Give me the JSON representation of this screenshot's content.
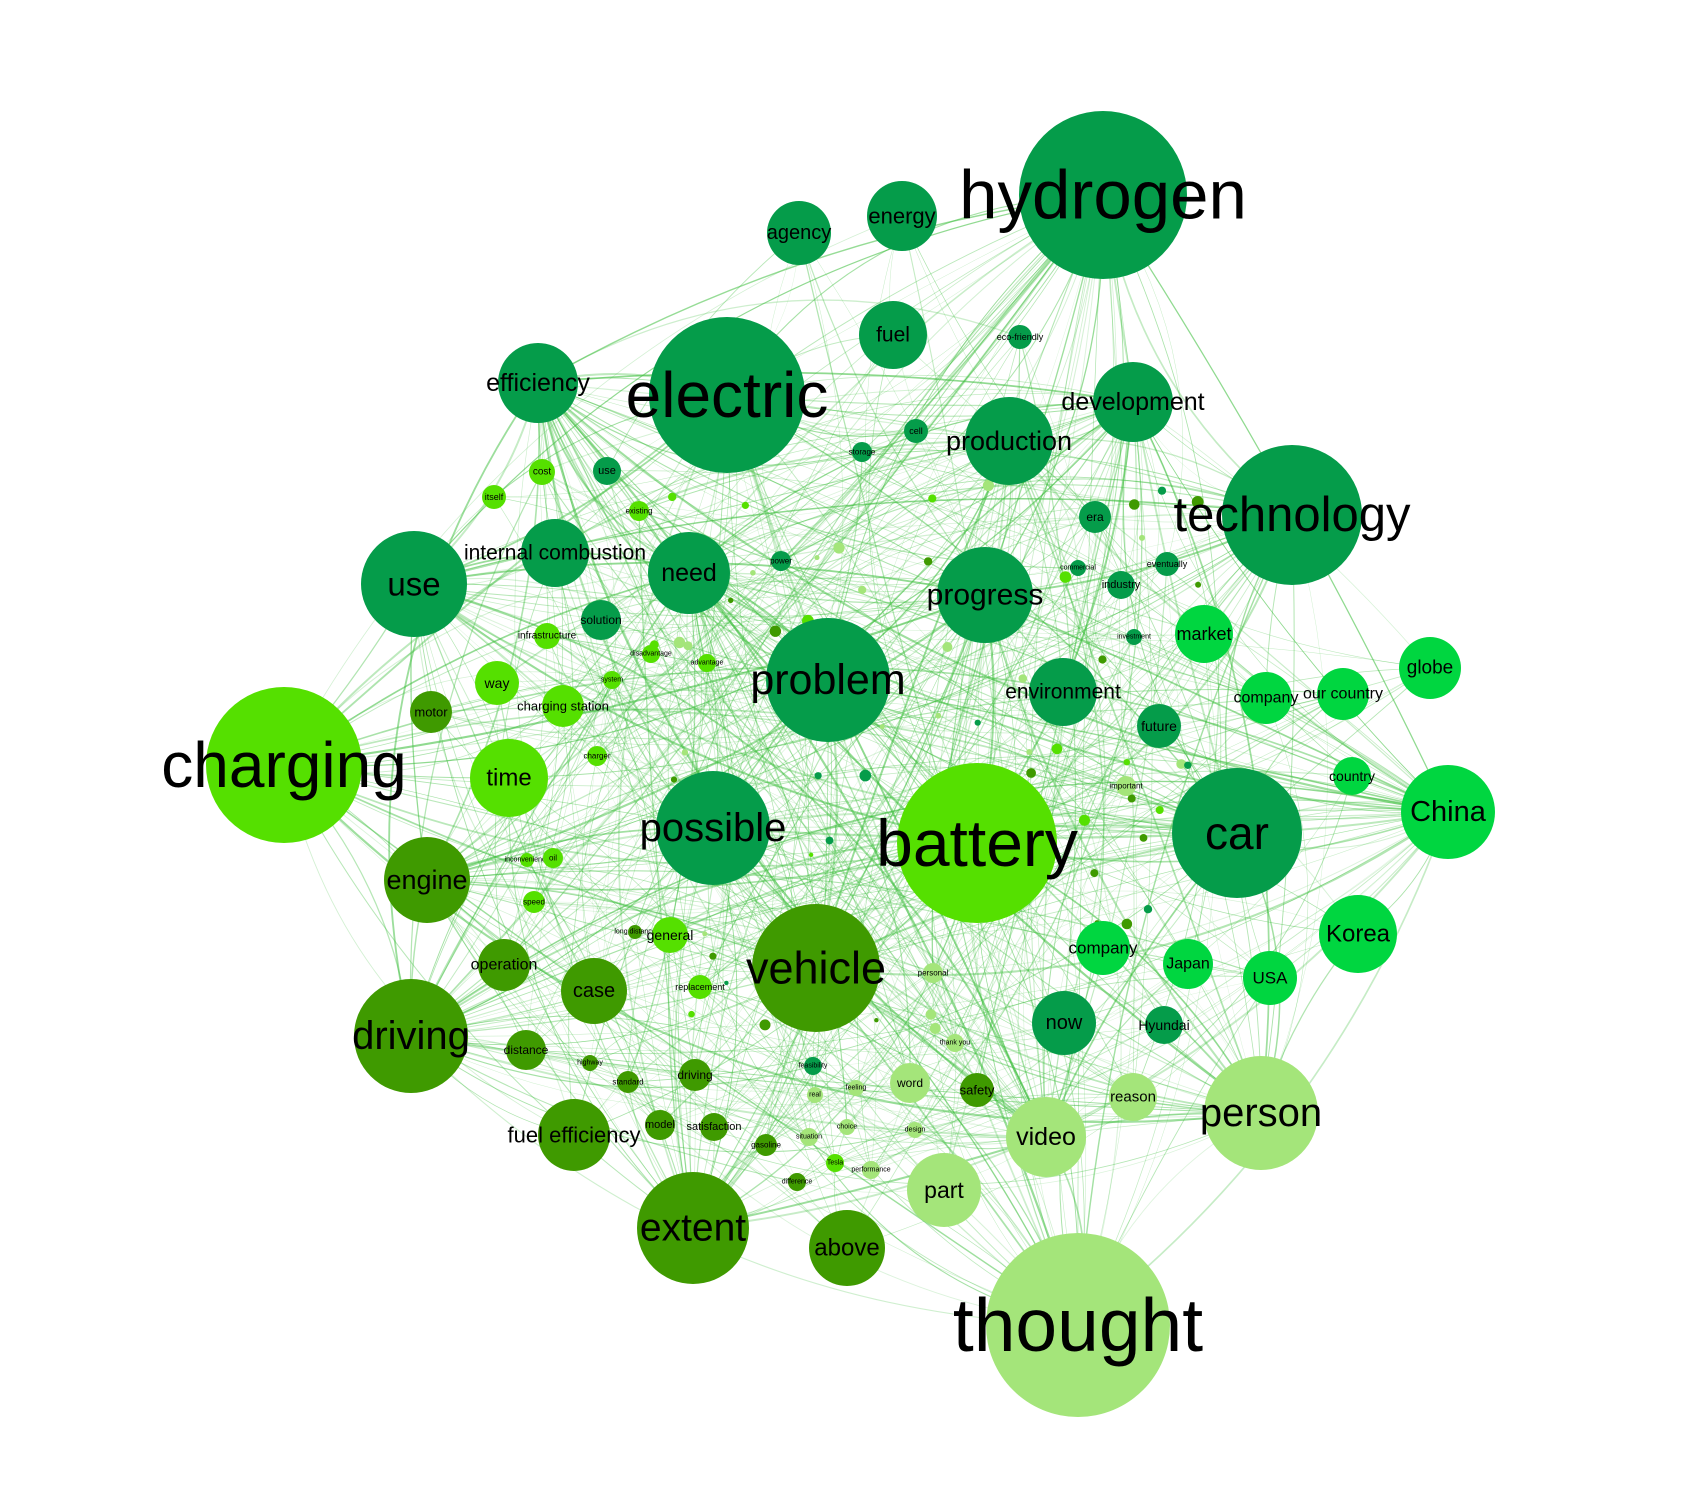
{
  "colors": {
    "dark_green": "#059c4a",
    "bright_green": "#55e000",
    "olive_green": "#3f9a00",
    "light_green": "#a4e57a",
    "lime_green": "#00d640",
    "edge_green": "#3fbf3f"
  },
  "nodes": [
    {
      "id": "hydrogen",
      "label": "hydrogen",
      "group": "dark_green",
      "weight": 84
    },
    {
      "id": "electric",
      "label": "electric",
      "group": "dark_green",
      "weight": 78
    },
    {
      "id": "technology",
      "label": "technology",
      "group": "dark_green",
      "weight": 70
    },
    {
      "id": "charging",
      "label": "charging",
      "group": "bright_green",
      "weight": 78
    },
    {
      "id": "battery",
      "label": "battery",
      "group": "bright_green",
      "weight": 80
    },
    {
      "id": "thought",
      "label": "thought",
      "group": "light_green",
      "weight": 92
    },
    {
      "id": "car",
      "label": "car",
      "group": "dark_green",
      "weight": 65
    },
    {
      "id": "problem",
      "label": "problem",
      "group": "dark_green",
      "weight": 62
    },
    {
      "id": "possible",
      "label": "possible",
      "group": "dark_green",
      "weight": 57
    },
    {
      "id": "vehicle",
      "label": "vehicle",
      "group": "olive_green",
      "weight": 64
    },
    {
      "id": "use_big",
      "label": "use",
      "group": "dark_green",
      "weight": 53
    },
    {
      "id": "progress",
      "label": "progress",
      "group": "dark_green",
      "weight": 48
    },
    {
      "id": "production",
      "label": "production",
      "group": "dark_green",
      "weight": 44
    },
    {
      "id": "development",
      "label": "development",
      "group": "dark_green",
      "weight": 40
    },
    {
      "id": "driving_big",
      "label": "driving",
      "group": "olive_green",
      "weight": 57
    },
    {
      "id": "extent",
      "label": "extent",
      "group": "olive_green",
      "weight": 56
    },
    {
      "id": "person",
      "label": "person",
      "group": "light_green",
      "weight": 57
    },
    {
      "id": "efficiency",
      "label": "efficiency",
      "group": "dark_green",
      "weight": 40
    },
    {
      "id": "need",
      "label": "need",
      "group": "dark_green",
      "weight": 41
    },
    {
      "id": "fuel",
      "label": "fuel",
      "group": "dark_green",
      "weight": 34
    },
    {
      "id": "energy",
      "label": "energy",
      "group": "dark_green",
      "weight": 35
    },
    {
      "id": "agency",
      "label": "agency",
      "group": "dark_green",
      "weight": 32
    },
    {
      "id": "environment",
      "label": "environment",
      "group": "dark_green",
      "weight": 34
    },
    {
      "id": "internal_combustion",
      "label": "internal combustion",
      "group": "dark_green",
      "weight": 34
    },
    {
      "id": "time",
      "label": "time",
      "group": "bright_green",
      "weight": 39
    },
    {
      "id": "engine",
      "label": "engine",
      "group": "olive_green",
      "weight": 43
    },
    {
      "id": "fuel_efficiency",
      "label": "fuel efficiency",
      "group": "olive_green",
      "weight": 36
    },
    {
      "id": "above",
      "label": "above",
      "group": "olive_green",
      "weight": 38
    },
    {
      "id": "china",
      "label": "China",
      "group": "lime_green",
      "weight": 47
    },
    {
      "id": "korea",
      "label": "Korea",
      "group": "lime_green",
      "weight": 39
    },
    {
      "id": "globe",
      "label": "globe",
      "group": "lime_green",
      "weight": 31
    },
    {
      "id": "market",
      "label": "market",
      "group": "lime_green",
      "weight": 29
    },
    {
      "id": "company_r",
      "label": "company",
      "group": "lime_green",
      "weight": 26
    },
    {
      "id": "our_country",
      "label": "our country",
      "group": "lime_green",
      "weight": 26
    },
    {
      "id": "country",
      "label": "country",
      "group": "lime_green",
      "weight": 19
    },
    {
      "id": "company_m",
      "label": "company",
      "group": "lime_green",
      "weight": 27
    },
    {
      "id": "japan",
      "label": "Japan",
      "group": "lime_green",
      "weight": 25
    },
    {
      "id": "usa",
      "label": "USA",
      "group": "lime_green",
      "weight": 27
    },
    {
      "id": "hyundai",
      "label": "Hyundai",
      "group": "dark_green",
      "weight": 19
    },
    {
      "id": "now",
      "label": "now",
      "group": "dark_green",
      "weight": 32
    },
    {
      "id": "future",
      "label": "future",
      "group": "dark_green",
      "weight": 22
    },
    {
      "id": "video",
      "label": "video",
      "group": "light_green",
      "weight": 40
    },
    {
      "id": "part",
      "label": "part",
      "group": "light_green",
      "weight": 37
    },
    {
      "id": "reason",
      "label": "reason",
      "group": "light_green",
      "weight": 24
    },
    {
      "id": "word",
      "label": "word",
      "group": "light_green",
      "weight": 20
    },
    {
      "id": "safety",
      "label": "safety",
      "group": "olive_green",
      "weight": 17
    },
    {
      "id": "case",
      "label": "case",
      "group": "olive_green",
      "weight": 33
    },
    {
      "id": "operation",
      "label": "operation",
      "group": "olive_green",
      "weight": 26
    },
    {
      "id": "distance",
      "label": "distance",
      "group": "olive_green",
      "weight": 20
    },
    {
      "id": "motor",
      "label": "motor",
      "group": "olive_green",
      "weight": 21
    },
    {
      "id": "way",
      "label": "way",
      "group": "bright_green",
      "weight": 22
    },
    {
      "id": "charging_station",
      "label": "charging station",
      "group": "bright_green",
      "weight": 21
    },
    {
      "id": "solution",
      "label": "solution",
      "group": "dark_green",
      "weight": 20
    },
    {
      "id": "general",
      "label": "general",
      "group": "bright_green",
      "weight": 18
    },
    {
      "id": "driving_small",
      "label": "driving",
      "group": "olive_green",
      "weight": 16
    },
    {
      "id": "model",
      "label": "model",
      "group": "olive_green",
      "weight": 15
    },
    {
      "id": "satisfaction",
      "label": "satisfaction",
      "group": "olive_green",
      "weight": 14
    },
    {
      "id": "eco_friendly",
      "label": "eco-friendly",
      "group": "dark_green",
      "weight": 12
    },
    {
      "id": "cell",
      "label": "cell",
      "group": "dark_green",
      "weight": 12
    },
    {
      "id": "storage",
      "label": "storage",
      "group": "dark_green",
      "weight": 10
    },
    {
      "id": "era",
      "label": "era",
      "group": "dark_green",
      "weight": 16
    },
    {
      "id": "industry",
      "label": "industry",
      "group": "dark_green",
      "weight": 14
    },
    {
      "id": "eventually",
      "label": "eventually",
      "group": "dark_green",
      "weight": 12
    },
    {
      "id": "commercial",
      "label": "commercial",
      "group": "dark_green",
      "weight": 8
    },
    {
      "id": "investment",
      "label": "investment",
      "group": "dark_green",
      "weight": 8
    },
    {
      "id": "important",
      "label": "important",
      "group": "light_green",
      "weight": 10
    },
    {
      "id": "cost",
      "label": "cost",
      "group": "bright_green",
      "weight": 13
    },
    {
      "id": "use_small",
      "label": "use",
      "group": "dark_green",
      "weight": 14
    },
    {
      "id": "itself",
      "label": "itself",
      "group": "bright_green",
      "weight": 12
    },
    {
      "id": "existing",
      "label": "existing",
      "group": "bright_green",
      "weight": 10
    },
    {
      "id": "power",
      "label": "power",
      "group": "dark_green",
      "weight": 10
    },
    {
      "id": "infrastructure",
      "label": "infrastructure",
      "group": "bright_green",
      "weight": 13
    },
    {
      "id": "disadvantage",
      "label": "disadvantage",
      "group": "bright_green",
      "weight": 9
    },
    {
      "id": "advantage",
      "label": "advantage",
      "group": "bright_green",
      "weight": 9
    },
    {
      "id": "system",
      "label": "system",
      "group": "bright_green",
      "weight": 9
    },
    {
      "id": "charger",
      "label": "charger",
      "group": "bright_green",
      "weight": 10
    },
    {
      "id": "oil",
      "label": "oil",
      "group": "bright_green",
      "weight": 10
    },
    {
      "id": "speed",
      "label": "speed",
      "group": "bright_green",
      "weight": 11
    },
    {
      "id": "inconvenience",
      "label": "inconvenience",
      "group": "bright_green",
      "weight": 7
    },
    {
      "id": "long_distance",
      "label": "long distance",
      "group": "olive_green",
      "weight": 7
    },
    {
      "id": "replacement",
      "label": "replacement",
      "group": "bright_green",
      "weight": 12
    },
    {
      "id": "standard",
      "label": "standard",
      "group": "olive_green",
      "weight": 11
    },
    {
      "id": "highway",
      "label": "highway",
      "group": "olive_green",
      "weight": 8
    },
    {
      "id": "personal",
      "label": "personal",
      "group": "light_green",
      "weight": 10
    },
    {
      "id": "thank_you",
      "label": "thank you",
      "group": "light_green",
      "weight": 9
    },
    {
      "id": "feeling",
      "label": "feeling",
      "group": "light_green",
      "weight": 8
    },
    {
      "id": "real",
      "label": "real",
      "group": "light_green",
      "weight": 8
    },
    {
      "id": "choice",
      "label": "choice",
      "group": "light_green",
      "weight": 8
    },
    {
      "id": "situation",
      "label": "situation",
      "group": "light_green",
      "weight": 9
    },
    {
      "id": "gasoline",
      "label": "gasoline",
      "group": "olive_green",
      "weight": 11
    },
    {
      "id": "difference",
      "label": "difference",
      "group": "olive_green",
      "weight": 9
    },
    {
      "id": "tesla",
      "label": "Tesla",
      "group": "bright_green",
      "weight": 9
    },
    {
      "id": "performance",
      "label": "performance",
      "group": "light_green",
      "weight": 9
    },
    {
      "id": "design",
      "label": "design",
      "group": "light_green",
      "weight": 8
    },
    {
      "id": "feasibility",
      "label": "feasibility",
      "group": "dark_green",
      "weight": 9
    }
  ]
}
